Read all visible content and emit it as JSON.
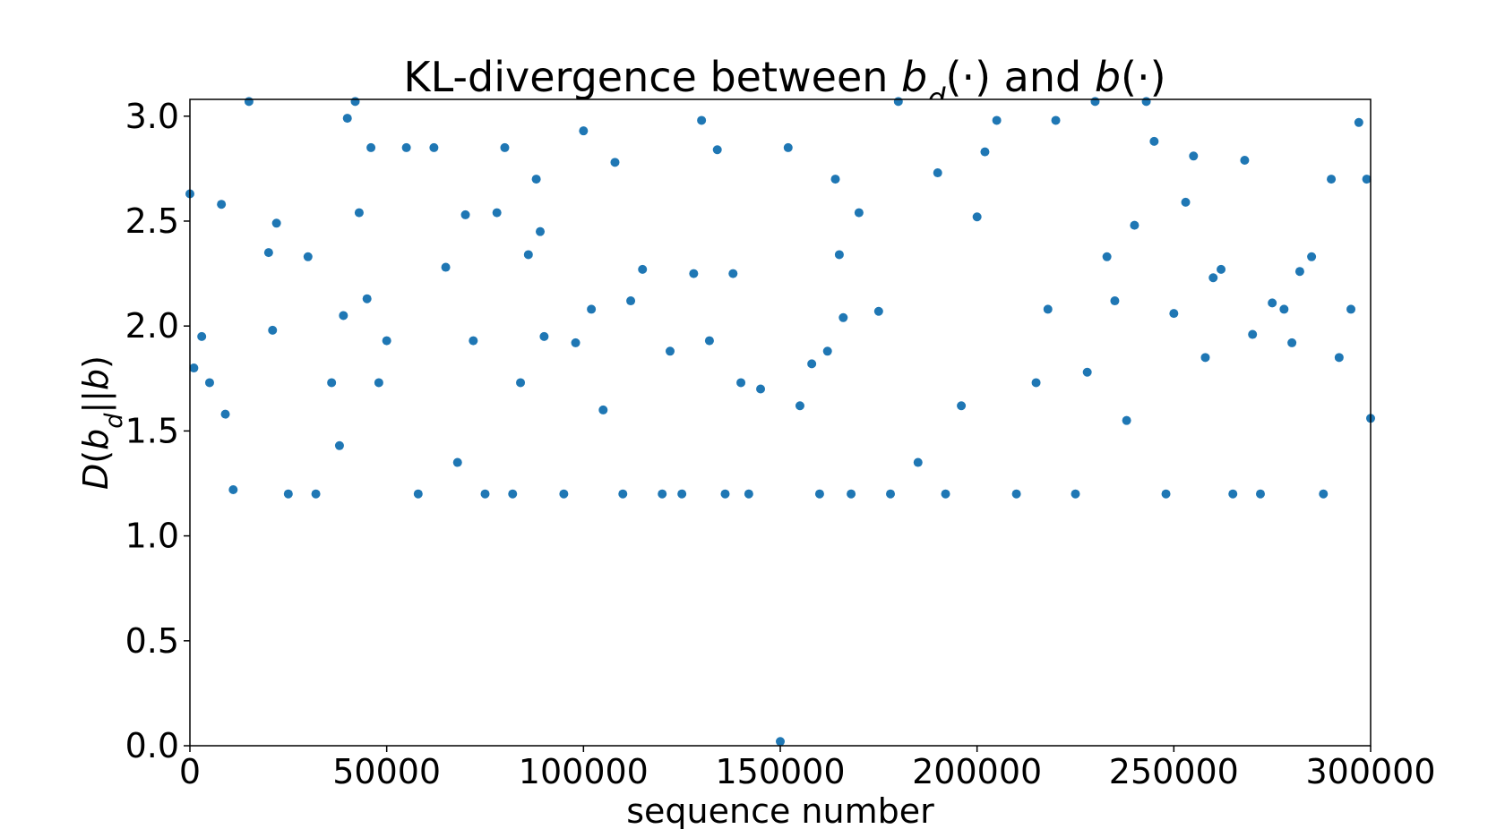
{
  "chart_data": {
    "type": "scatter",
    "title_parts": [
      {
        "text": "KL-divergence between "
      },
      {
        "text": "b",
        "italic": true
      },
      {
        "text": "d",
        "italic": true,
        "sub": true
      },
      {
        "text": "(·) and "
      },
      {
        "text": "b",
        "italic": true
      },
      {
        "text": "(·)"
      }
    ],
    "xlabel": "sequence number",
    "ylabel_parts": [
      {
        "text": "D",
        "italic": true
      },
      {
        "text": "("
      },
      {
        "text": "b",
        "italic": true
      },
      {
        "text": "d",
        "italic": true,
        "sub": true
      },
      {
        "text": "||"
      },
      {
        "text": "b",
        "italic": true
      },
      {
        "text": ")"
      }
    ],
    "xlim": [
      0,
      300000
    ],
    "ylim": [
      0,
      3.08
    ],
    "xticks": [
      0,
      50000,
      100000,
      150000,
      200000,
      250000,
      300000
    ],
    "xtick_labels": [
      "0",
      "50000",
      "100000",
      "150000",
      "200000",
      "250000",
      "300000"
    ],
    "yticks": [
      0,
      0.5,
      1.0,
      1.5,
      2.0,
      2.5,
      3.0
    ],
    "ytick_labels": [
      "0.0",
      "0.5",
      "1.0",
      "1.5",
      "2.0",
      "2.5",
      "3.0"
    ],
    "grid": false,
    "marker_color": "#1f77b4",
    "series": [
      {
        "name": "",
        "points_sampled": true,
        "x": [
          0,
          1000,
          3000,
          5000,
          8000,
          9000,
          11000,
          15000,
          20000,
          21000,
          22000,
          25000,
          30000,
          32000,
          36000,
          38000,
          39000,
          40000,
          42000,
          43000,
          45000,
          46000,
          48000,
          50000,
          55000,
          58000,
          62000,
          65000,
          68000,
          70000,
          72000,
          75000,
          78000,
          80000,
          82000,
          84000,
          86000,
          88000,
          89000,
          90000,
          95000,
          98000,
          100000,
          102000,
          105000,
          108000,
          110000,
          112000,
          115000,
          120000,
          122000,
          125000,
          128000,
          130000,
          132000,
          134000,
          136000,
          138000,
          140000,
          142000,
          145000,
          150000,
          152000,
          155000,
          158000,
          160000,
          162000,
          164000,
          165000,
          166000,
          168000,
          170000,
          175000,
          178000,
          180000,
          185000,
          190000,
          192000,
          196000,
          200000,
          202000,
          205000,
          210000,
          215000,
          218000,
          220000,
          225000,
          228000,
          230000,
          233000,
          235000,
          238000,
          240000,
          243000,
          245000,
          248000,
          250000,
          253000,
          255000,
          258000,
          260000,
          262000,
          265000,
          268000,
          270000,
          272000,
          275000,
          278000,
          280000,
          282000,
          285000,
          288000,
          290000,
          292000,
          295000,
          297000,
          299000,
          300000
        ],
        "y": [
          2.63,
          1.8,
          1.95,
          1.73,
          2.58,
          1.58,
          1.22,
          3.07,
          2.35,
          1.98,
          2.49,
          1.2,
          2.33,
          1.2,
          1.73,
          1.43,
          2.05,
          2.99,
          3.07,
          2.54,
          2.13,
          2.85,
          1.73,
          1.93,
          2.85,
          1.2,
          2.85,
          2.28,
          1.35,
          2.53,
          1.93,
          1.2,
          2.54,
          2.85,
          1.2,
          1.73,
          2.34,
          2.7,
          2.45,
          1.95,
          1.2,
          1.92,
          2.93,
          2.08,
          1.6,
          2.78,
          1.2,
          2.12,
          2.27,
          1.2,
          1.88,
          1.2,
          2.25,
          2.98,
          1.93,
          2.84,
          1.2,
          2.25,
          1.73,
          1.2,
          1.7,
          0.02,
          2.85,
          1.62,
          1.82,
          1.2,
          1.88,
          2.7,
          2.34,
          2.04,
          1.2,
          2.54,
          2.07,
          1.2,
          3.07,
          1.35,
          2.73,
          1.2,
          1.62,
          2.52,
          2.83,
          2.98,
          1.2,
          1.73,
          2.08,
          2.98,
          1.2,
          1.78,
          3.07,
          2.33,
          2.12,
          1.55,
          2.48,
          3.07,
          2.88,
          1.2,
          2.06,
          2.59,
          2.81,
          1.85,
          2.23,
          2.27,
          1.2,
          2.79,
          1.96,
          1.2,
          2.11,
          2.08,
          1.92,
          2.26,
          2.33,
          1.2,
          2.7,
          1.85,
          2.08,
          2.97,
          2.7,
          1.56
        ]
      }
    ]
  }
}
